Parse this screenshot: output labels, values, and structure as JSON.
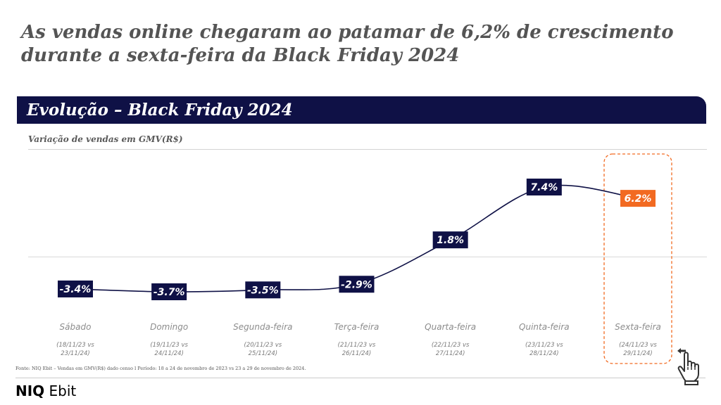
{
  "title": {
    "line1": "As vendas online chegaram ao patamar de 6,2% de crescimento",
    "line2": "durante a sexta-feira da Black Friday 2024"
  },
  "banner": {
    "text": "Evolução – Black Friday 2024"
  },
  "colors": {
    "navy": "#0f1146",
    "highlight": "#f26a21",
    "grey": "#8c8c8c"
  },
  "chart_data": {
    "type": "line",
    "title": "Variação de vendas em GMV(R$)",
    "categories": [
      "Sábado",
      "Domingo",
      "Segunda-feira",
      "Terça-feira",
      "Quarta-feira",
      "Quinta-feira",
      "Sexta-feira"
    ],
    "periods": [
      [
        "(18/11/23 vs",
        "23/11/24)"
      ],
      [
        "(19/11/23 vs",
        "24/11/24)"
      ],
      [
        "(20/11/23 vs",
        "25/11/24)"
      ],
      [
        "(21/11/23 vs",
        "26/11/24)"
      ],
      [
        "(22/11/23 vs",
        "27/11/24)"
      ],
      [
        "(23/11/23 vs",
        "28/11/24)"
      ],
      [
        "(24/11/23 vs",
        "29/11/24)"
      ]
    ],
    "values": [
      -3.4,
      -3.7,
      -3.5,
      -2.9,
      1.8,
      7.4,
      6.2
    ],
    "labels": [
      "-3.4%",
      "-3.7%",
      "-3.5%",
      "-2.9%",
      "1.8%",
      "7.4%",
      "6.2%"
    ],
    "highlight_index": 6,
    "baseline_value": 0,
    "ylim": [
      -5,
      9
    ]
  },
  "footer": {
    "source": "Fonte: NIQ Ebit – Vendas em GMV(R$) dado censo l Período: 18 a 24 de novembro de 2023 vs 23 a 29 de novembro de 2024.",
    "logo_part1": "NIQ",
    "logo_part2": " Ebit"
  },
  "icons": {
    "pointer": "hand-pointer-icon"
  }
}
